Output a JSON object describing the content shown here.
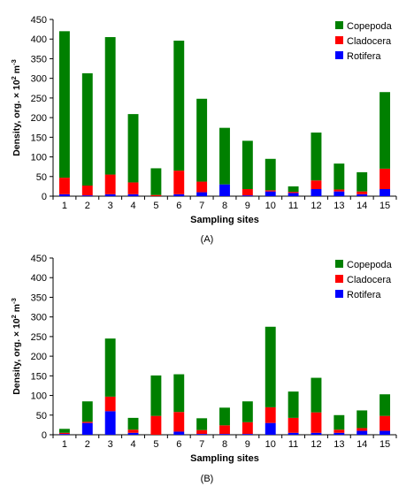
{
  "chart_data": [
    {
      "type": "bar",
      "stacked": true,
      "panel_label": "(A)",
      "xlabel": "Sampling sites",
      "ylabel_main": "Density, org. × 10",
      "ylabel_sup1": "2",
      "ylabel_mid": " m",
      "ylabel_sup2": "-3",
      "ylim": [
        0,
        450
      ],
      "yticks": [
        "0",
        "50",
        "100",
        "150",
        "200",
        "250",
        "300",
        "350",
        "400",
        "450"
      ],
      "categories": [
        "1",
        "2",
        "3",
        "4",
        "5",
        "6",
        "7",
        "8",
        "9",
        "10",
        "11",
        "12",
        "13",
        "14",
        "15"
      ],
      "legend_position": "top-right",
      "legend_order": [
        "Copepoda",
        "Cladocera",
        "Rotifera"
      ],
      "series": [
        {
          "name": "Rotifera",
          "color": "#0000ff",
          "values": [
            5,
            2,
            5,
            5,
            0,
            5,
            10,
            30,
            2,
            12,
            8,
            18,
            12,
            5,
            18
          ]
        },
        {
          "name": "Cladocera",
          "color": "#ff0000",
          "values": [
            42,
            25,
            50,
            30,
            3,
            60,
            27,
            0,
            16,
            3,
            3,
            22,
            5,
            7,
            52
          ]
        },
        {
          "name": "Copepoda",
          "color": "#008000",
          "values": [
            373,
            286,
            350,
            174,
            68,
            331,
            211,
            144,
            123,
            80,
            14,
            122,
            66,
            49,
            195
          ]
        }
      ]
    },
    {
      "type": "bar",
      "stacked": true,
      "panel_label": "(B)",
      "xlabel": "Sampling sites",
      "ylabel_main": "Density, org. × 10",
      "ylabel_sup1": "2",
      "ylabel_mid": " m",
      "ylabel_sup2": "-3",
      "ylim": [
        0,
        450
      ],
      "yticks": [
        "0",
        "50",
        "100",
        "150",
        "200",
        "250",
        "300",
        "350",
        "400",
        "450"
      ],
      "categories": [
        "1",
        "2",
        "3",
        "4",
        "5",
        "6",
        "7",
        "8",
        "9",
        "10",
        "11",
        "12",
        "13",
        "14",
        "15"
      ],
      "legend_position": "top-right",
      "legend_order": [
        "Copepoda",
        "Cladocera",
        "Rotifera"
      ],
      "series": [
        {
          "name": "Rotifera",
          "color": "#0000ff",
          "values": [
            2,
            30,
            60,
            5,
            0,
            8,
            2,
            2,
            2,
            30,
            5,
            5,
            5,
            10,
            10
          ]
        },
        {
          "name": "Cladocera",
          "color": "#ff0000",
          "values": [
            3,
            3,
            37,
            8,
            48,
            50,
            10,
            22,
            30,
            40,
            38,
            52,
            8,
            7,
            38
          ]
        },
        {
          "name": "Copepoda",
          "color": "#008000",
          "values": [
            10,
            52,
            148,
            30,
            103,
            96,
            30,
            45,
            53,
            205,
            67,
            88,
            37,
            45,
            55
          ]
        }
      ]
    }
  ]
}
